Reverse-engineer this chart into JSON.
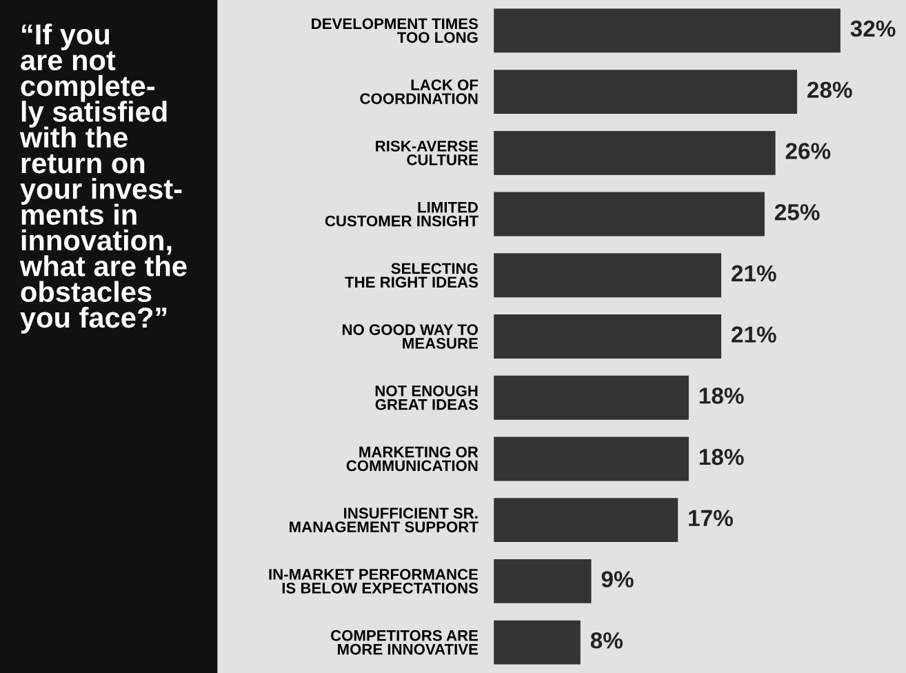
{
  "chart_data": {
    "type": "bar",
    "orientation": "horizontal",
    "title": "“If you\nare not\ncomplete-\nly satisfied\nwith the\nreturn on\nyour invest-\nments in\ninnovation,\nwhat are the\nobstacles\nyou face?”",
    "categories": [
      "DEVELOPMENT TIMES\nTOO LONG",
      "LACK OF\nCOORDINATION",
      "RISK-AVERSE\nCULTURE",
      "LIMITED\nCUSTOMER INSIGHT",
      "SELECTING\nTHE RIGHT IDEAS",
      "NO GOOD WAY TO\nMEASURE",
      "NOT ENOUGH\nGREAT IDEAS",
      "MARKETING OR\nCOMMUNICATION",
      "INSUFFICIENT SR.\nMANAGEMENT SUPPORT",
      "IN-MARKET PERFORMANCE\nIS BELOW EXPECTATIONS",
      "COMPETITORS ARE\nMORE INNOVATIVE"
    ],
    "values": [
      32,
      28,
      26,
      25,
      21,
      21,
      18,
      18,
      17,
      9,
      8
    ],
    "value_labels": [
      "32%",
      "28%",
      "26%",
      "25%",
      "21%",
      "21%",
      "18%",
      "18%",
      "17%",
      "9%",
      "8%"
    ],
    "color": "#333333"
  }
}
